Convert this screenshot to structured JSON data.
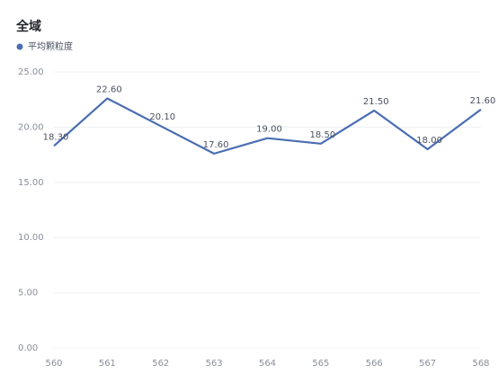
{
  "chart_data": {
    "type": "line",
    "title": "全域",
    "categories": [
      "560",
      "561",
      "562",
      "563",
      "564",
      "565",
      "566",
      "567",
      "568"
    ],
    "series": [
      {
        "name": "平均颗粒度",
        "color": "#4a6db3",
        "values": [
          18.3,
          22.6,
          20.1,
          17.6,
          19.0,
          18.5,
          21.5,
          18.0,
          21.6
        ],
        "value_labels": [
          "18.30",
          "22.60",
          "20.10",
          "17.60",
          "19.00",
          "18.50",
          "21.50",
          "18.00",
          "21.60"
        ]
      }
    ],
    "ylim": [
      0,
      25
    ],
    "yticks": [
      {
        "value": 0,
        "label": "0.00"
      },
      {
        "value": 5,
        "label": "5.00"
      },
      {
        "value": 10,
        "label": "10.00"
      },
      {
        "value": 15,
        "label": "15.00"
      },
      {
        "value": 20,
        "label": "20.00"
      },
      {
        "value": 25,
        "label": "25.00"
      }
    ],
    "grid": true
  }
}
